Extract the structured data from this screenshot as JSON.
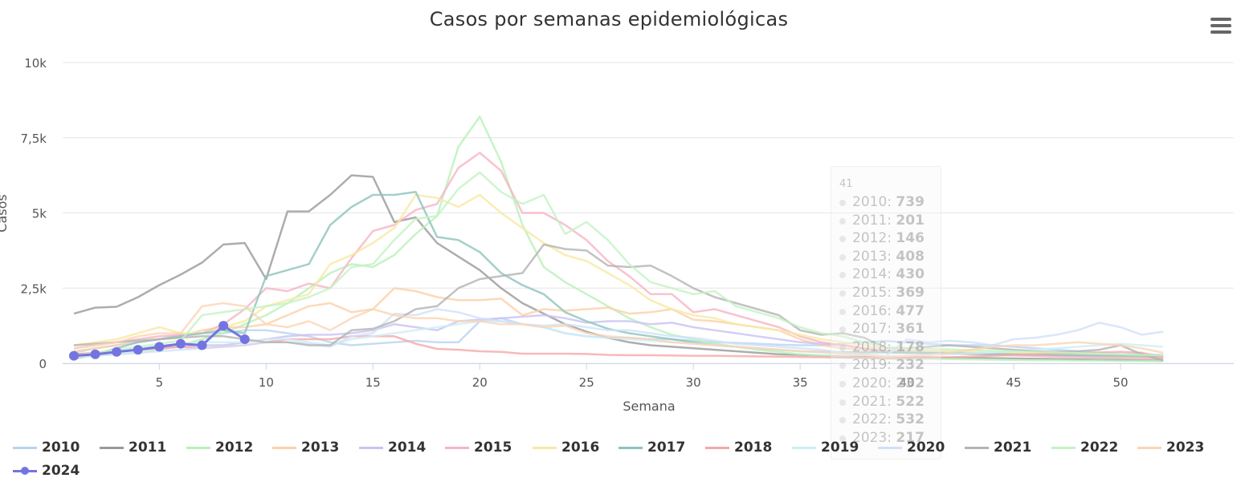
{
  "chart_data": {
    "type": "line",
    "title": "Casos por semanas epidemiológicas",
    "xlabel": "Semana",
    "ylabel": "Casos",
    "ylim": [
      0,
      10000
    ],
    "xlim": [
      1,
      53
    ],
    "y_ticks": [
      "0",
      "2,5k",
      "5k",
      "7,5k",
      "10k"
    ],
    "y_tick_values": [
      0,
      2500,
      5000,
      7500,
      10000
    ],
    "x_ticks": [
      5,
      10,
      15,
      20,
      25,
      30,
      35,
      40,
      45,
      50
    ],
    "grid": true,
    "legend_position": "bottom",
    "series": [
      {
        "name": "2010",
        "color": "#b8d3f1",
        "values": [
          350,
          500,
          600,
          700,
          800,
          950,
          1000,
          1000,
          1100,
          1100,
          1000,
          900,
          700,
          600,
          650,
          700,
          750,
          700,
          700,
          1400,
          1500,
          1300,
          1200,
          1000,
          900,
          850,
          850,
          800,
          800,
          750,
          700,
          680,
          650,
          620,
          600,
          600,
          650,
          700,
          739,
          700,
          650,
          600,
          600,
          600,
          550,
          500,
          450,
          400,
          350,
          300,
          300,
          280
        ]
      },
      {
        "name": "2011",
        "color": "#999999",
        "values": [
          1650,
          1850,
          1880,
          2200,
          2600,
          2950,
          3350,
          3950,
          4000,
          2800,
          5050,
          5050,
          5600,
          6250,
          6200,
          4700,
          4850,
          4000,
          3550,
          3100,
          2500,
          2000,
          1650,
          1300,
          1050,
          850,
          700,
          600,
          550,
          500,
          450,
          400,
          350,
          300,
          280,
          250,
          220,
          210,
          201,
          200,
          200,
          190,
          180,
          170,
          160,
          150,
          140,
          130,
          120,
          110,
          100,
          90
        ]
      },
      {
        "name": "2012",
        "color": "#b8f1b8",
        "values": [
          200,
          250,
          300,
          350,
          450,
          600,
          800,
          1000,
          1300,
          1600,
          2000,
          2500,
          3000,
          3300,
          3200,
          3600,
          4300,
          4900,
          7200,
          8200,
          6700,
          4600,
          3200,
          2700,
          2300,
          1900,
          1500,
          1200,
          950,
          800,
          650,
          550,
          450,
          380,
          300,
          250,
          200,
          180,
          146,
          150,
          150,
          140,
          130,
          120,
          110,
          100,
          100,
          90,
          90,
          80,
          80,
          70
        ]
      },
      {
        "name": "2013",
        "color": "#fcd0a8",
        "values": [
          400,
          500,
          600,
          700,
          800,
          900,
          1100,
          1200,
          1200,
          1300,
          1600,
          1900,
          2000,
          1700,
          1800,
          2500,
          2400,
          2200,
          2100,
          2100,
          2150,
          1600,
          1800,
          1750,
          1800,
          1850,
          1650,
          1700,
          1800,
          1450,
          1400,
          1300,
          1200,
          1100,
          800,
          600,
          500,
          450,
          408,
          400,
          380,
          360,
          340,
          320,
          300,
          280,
          260,
          240,
          220,
          200,
          190,
          180
        ]
      },
      {
        "name": "2014",
        "color": "#c9c2f3",
        "values": [
          300,
          350,
          400,
          450,
          500,
          550,
          600,
          600,
          700,
          800,
          900,
          950,
          950,
          1000,
          1100,
          1300,
          1200,
          1100,
          1400,
          1450,
          1500,
          1550,
          1600,
          1500,
          1350,
          1400,
          1400,
          1300,
          1350,
          1200,
          1100,
          1000,
          900,
          800,
          700,
          650,
          600,
          500,
          430,
          400,
          380,
          360,
          340,
          320,
          300,
          280,
          260,
          240,
          230,
          220,
          210,
          200
        ]
      },
      {
        "name": "2015",
        "color": "#f6b4c3",
        "values": [
          500,
          600,
          700,
          800,
          900,
          950,
          1000,
          1300,
          1800,
          2500,
          2400,
          2650,
          2500,
          3500,
          4400,
          4600,
          5100,
          5300,
          6500,
          7000,
          6400,
          5000,
          5000,
          4600,
          4100,
          3400,
          2900,
          2300,
          2300,
          1700,
          1800,
          1600,
          1400,
          1200,
          900,
          700,
          600,
          500,
          369,
          350,
          340,
          320,
          300,
          280,
          260,
          240,
          220,
          200,
          190,
          180,
          170,
          160
        ]
      },
      {
        "name": "2016",
        "color": "#f8e8a3",
        "values": [
          600,
          700,
          800,
          1000,
          1200,
          1000,
          1000,
          1200,
          1400,
          1900,
          2100,
          2300,
          3300,
          3600,
          4000,
          4500,
          5600,
          5500,
          5200,
          5600,
          5000,
          4500,
          4000,
          3600,
          3400,
          3000,
          2600,
          2100,
          1800,
          1600,
          1500,
          1300,
          1200,
          1100,
          950,
          800,
          700,
          600,
          477,
          450,
          420,
          400,
          380,
          360,
          340,
          320,
          300,
          280,
          260,
          240,
          230,
          220
        ]
      },
      {
        "name": "2017",
        "color": "#8cc3be",
        "values": [
          150,
          300,
          500,
          700,
          800,
          900,
          1000,
          1100,
          1000,
          2900,
          3100,
          3300,
          4600,
          5200,
          5600,
          5600,
          5700,
          4200,
          4100,
          3700,
          3000,
          2600,
          2300,
          1700,
          1400,
          1150,
          1000,
          900,
          800,
          700,
          600,
          550,
          500,
          450,
          400,
          380,
          370,
          365,
          361,
          350,
          340,
          330,
          320,
          310,
          300,
          290,
          280,
          270,
          260,
          250,
          240,
          230
        ]
      },
      {
        "name": "2018",
        "color": "#f6a7a7",
        "values": [
          300,
          350,
          400,
          450,
          500,
          550,
          500,
          550,
          600,
          700,
          800,
          800,
          800,
          900,
          900,
          900,
          650,
          480,
          450,
          400,
          380,
          320,
          320,
          320,
          310,
          280,
          270,
          270,
          260,
          250,
          250,
          240,
          230,
          220,
          210,
          200,
          190,
          180,
          178,
          180,
          190,
          200,
          220,
          250,
          280,
          300,
          320,
          340,
          360,
          380,
          350,
          200
        ]
      },
      {
        "name": "2019",
        "color": "#cdeef6",
        "values": [
          200,
          300,
          400,
          500,
          600,
          600,
          700,
          700,
          700,
          800,
          800,
          700,
          600,
          800,
          900,
          1000,
          1100,
          1200,
          1300,
          1400,
          1400,
          1300,
          1200,
          1000,
          900,
          850,
          800,
          750,
          700,
          650,
          600,
          550,
          500,
          450,
          400,
          350,
          300,
          280,
          232,
          250,
          270,
          300,
          330,
          360,
          400,
          450,
          500,
          550,
          600,
          650,
          600,
          550
        ]
      },
      {
        "name": "2020",
        "color": "#cfe1f8",
        "values": [
          200,
          250,
          300,
          350,
          400,
          450,
          500,
          550,
          600,
          700,
          700,
          650,
          550,
          900,
          1000,
          1650,
          1600,
          1800,
          1700,
          1500,
          1400,
          1300,
          1250,
          1300,
          1200,
          1100,
          1100,
          1000,
          900,
          850,
          750,
          650,
          600,
          550,
          500,
          450,
          350,
          300,
          232,
          800,
          700,
          750,
          700,
          600,
          800,
          850,
          950,
          1100,
          1350,
          1200,
          950,
          1050
        ]
      },
      {
        "name": "2021",
        "color": "#b3b3b3",
        "values": [
          600,
          650,
          700,
          750,
          800,
          850,
          900,
          900,
          800,
          700,
          700,
          600,
          600,
          1100,
          1150,
          1400,
          1800,
          1900,
          2500,
          2800,
          2900,
          3000,
          3950,
          3800,
          3750,
          3250,
          3200,
          3250,
          2900,
          2500,
          2200,
          2000,
          1800,
          1600,
          1100,
          950,
          1000,
          850,
          522,
          500,
          550,
          600,
          550,
          500,
          450,
          400,
          380,
          400,
          450,
          600,
          300,
          100
        ]
      },
      {
        "name": "2022",
        "color": "#c3f3c3",
        "values": [
          250,
          350,
          450,
          550,
          650,
          750,
          1600,
          1700,
          1800,
          1900,
          2000,
          2200,
          2500,
          3200,
          3300,
          4100,
          4800,
          4900,
          5800,
          6350,
          5700,
          5300,
          5600,
          4300,
          4700,
          4100,
          3300,
          2700,
          2500,
          2300,
          2400,
          1900,
          1700,
          1500,
          1200,
          1000,
          900,
          700,
          532,
          500,
          480,
          460,
          440,
          420,
          400,
          380,
          360,
          340,
          320,
          300,
          280,
          260
        ]
      },
      {
        "name": "2023",
        "color": "#fbd5b4",
        "values": [
          500,
          600,
          700,
          900,
          1000,
          1000,
          1900,
          2000,
          1900,
          1300,
          1200,
          1400,
          1100,
          1500,
          1800,
          1600,
          1500,
          1500,
          1400,
          1400,
          1300,
          1300,
          1200,
          1250,
          1000,
          900,
          850,
          800,
          700,
          650,
          600,
          550,
          500,
          450,
          400,
          380,
          330,
          280,
          217,
          250,
          280,
          350,
          450,
          550,
          600,
          600,
          650,
          700,
          650,
          600,
          500,
          350
        ]
      },
      {
        "name": "2024",
        "color": "#7474e0",
        "marker": true,
        "values": [
          250,
          300,
          380,
          450,
          550,
          650,
          600,
          1250,
          800
        ]
      }
    ]
  },
  "tooltip": {
    "header": "41",
    "rows": [
      {
        "label": "2010",
        "value": "739"
      },
      {
        "label": "2011",
        "value": "201"
      },
      {
        "label": "2012",
        "value": "146"
      },
      {
        "label": "2013",
        "value": "408"
      },
      {
        "label": "2014",
        "value": "430"
      },
      {
        "label": "2015",
        "value": "369"
      },
      {
        "label": "2016",
        "value": "477"
      },
      {
        "label": "2017",
        "value": "361"
      },
      {
        "label": "2018",
        "value": "178"
      },
      {
        "label": "2019",
        "value": "232"
      },
      {
        "label": "2020",
        "value": "232"
      },
      {
        "label": "2021",
        "value": "522"
      },
      {
        "label": "2022",
        "value": "532"
      },
      {
        "label": "2023",
        "value": "217"
      }
    ]
  },
  "menu_icon": "hamburger-menu-icon"
}
